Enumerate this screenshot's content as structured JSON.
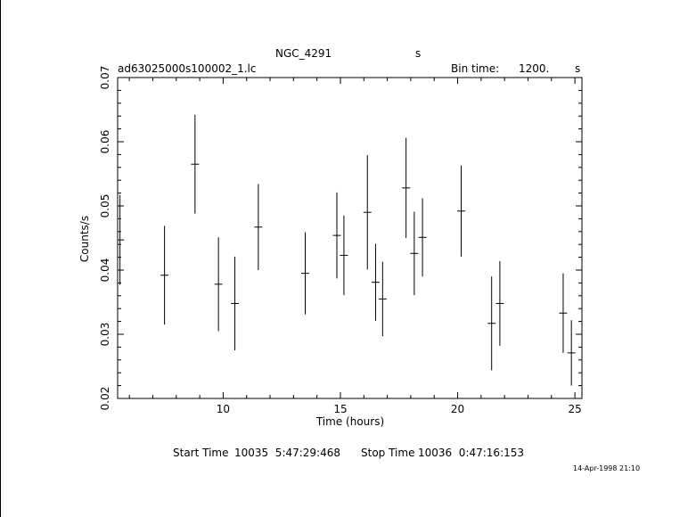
{
  "chart_data": {
    "type": "scatter",
    "title": "NGC_4291",
    "title_suffix": "s",
    "file_label": "ad63025000s100002_1.lc",
    "bin_time_label": "Bin time:",
    "bin_time_value": "1200.",
    "bin_time_unit": "s",
    "xlabel": "Time (hours)",
    "ylabel": "Counts/s",
    "xlim": [
      5.5,
      25.3
    ],
    "ylim": [
      0.02,
      0.07
    ],
    "xticks_major": [
      10,
      15,
      20,
      25
    ],
    "yticks_major": [
      0.02,
      0.03,
      0.04,
      0.05,
      0.06,
      0.07
    ],
    "grid": false,
    "points": [
      {
        "x": 5.6,
        "y": 0.0447,
        "yerr": 0.007,
        "xerr": 0.17
      },
      {
        "x": 7.5,
        "y": 0.0392,
        "yerr": 0.0077,
        "xerr": 0.17
      },
      {
        "x": 8.8,
        "y": 0.0565,
        "yerr": 0.0077,
        "xerr": 0.17
      },
      {
        "x": 9.8,
        "y": 0.0378,
        "yerr": 0.0073,
        "xerr": 0.17
      },
      {
        "x": 10.5,
        "y": 0.0348,
        "yerr": 0.0073,
        "xerr": 0.17
      },
      {
        "x": 11.5,
        "y": 0.0467,
        "yerr": 0.0067,
        "xerr": 0.17
      },
      {
        "x": 13.5,
        "y": 0.0395,
        "yerr": 0.0064,
        "xerr": 0.17
      },
      {
        "x": 14.85,
        "y": 0.0454,
        "yerr": 0.0067,
        "xerr": 0.17
      },
      {
        "x": 15.15,
        "y": 0.0423,
        "yerr": 0.0062,
        "xerr": 0.17
      },
      {
        "x": 16.15,
        "y": 0.049,
        "yerr": 0.0089,
        "xerr": 0.17
      },
      {
        "x": 16.5,
        "y": 0.0381,
        "yerr": 0.006,
        "xerr": 0.17
      },
      {
        "x": 16.8,
        "y": 0.0355,
        "yerr": 0.0058,
        "xerr": 0.17
      },
      {
        "x": 17.8,
        "y": 0.0528,
        "yerr": 0.0078,
        "xerr": 0.17
      },
      {
        "x": 18.15,
        "y": 0.0426,
        "yerr": 0.0065,
        "xerr": 0.17
      },
      {
        "x": 18.5,
        "y": 0.0451,
        "yerr": 0.0061,
        "xerr": 0.17
      },
      {
        "x": 20.15,
        "y": 0.0492,
        "yerr": 0.0071,
        "xerr": 0.17
      },
      {
        "x": 21.45,
        "y": 0.0317,
        "yerr": 0.0073,
        "xerr": 0.17
      },
      {
        "x": 21.8,
        "y": 0.0348,
        "yerr": 0.0066,
        "xerr": 0.17
      },
      {
        "x": 24.5,
        "y": 0.0333,
        "yerr": 0.0062,
        "xerr": 0.17
      },
      {
        "x": 24.85,
        "y": 0.0271,
        "yerr": 0.0051,
        "xerr": 0.17
      }
    ]
  },
  "footer": {
    "start_label": "Start Time",
    "start_value": "10035  5:47:29:468",
    "stop_label": "Stop Time",
    "stop_value": "10036  0:47:16:153",
    "timestamp": "14-Apr-1998 21:10"
  }
}
